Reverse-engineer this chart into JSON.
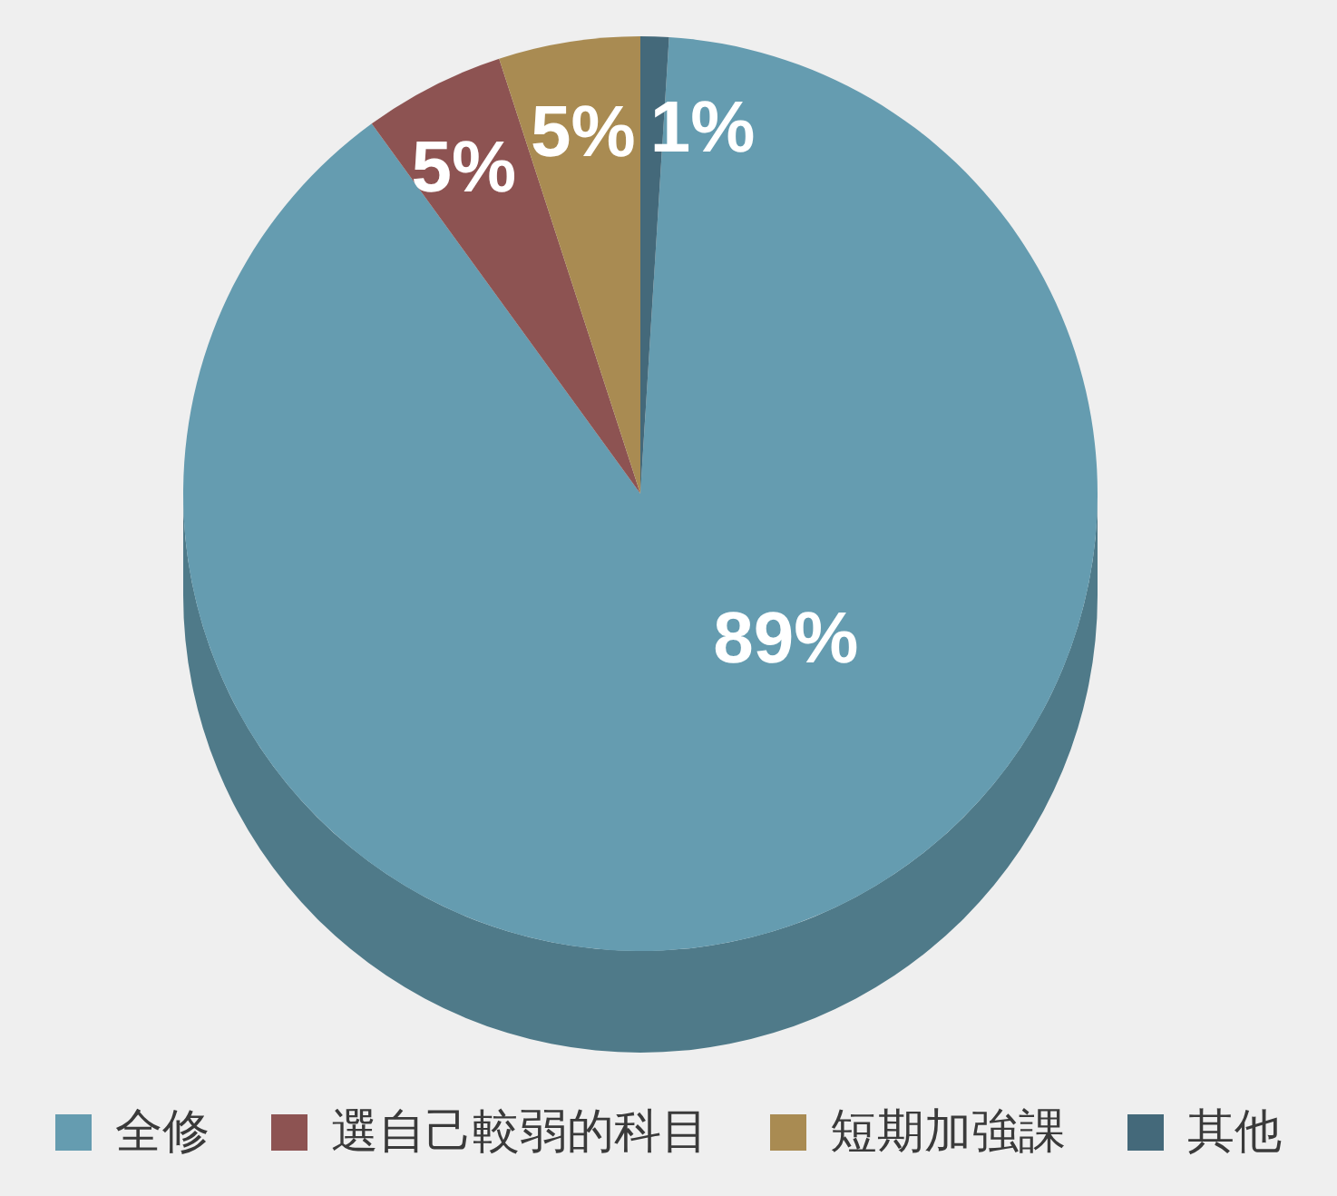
{
  "chart_data": {
    "type": "pie",
    "categories": [
      "全修",
      "選自己較弱的科目",
      "短期加強課",
      "其他"
    ],
    "values": [
      89,
      5,
      5,
      1
    ],
    "colors": [
      "#659cb0",
      "#8d5352",
      "#a98b52",
      "#44697a"
    ],
    "value_labels": [
      "89%",
      "5%",
      "5%",
      "1%"
    ],
    "legend": "bottom"
  }
}
